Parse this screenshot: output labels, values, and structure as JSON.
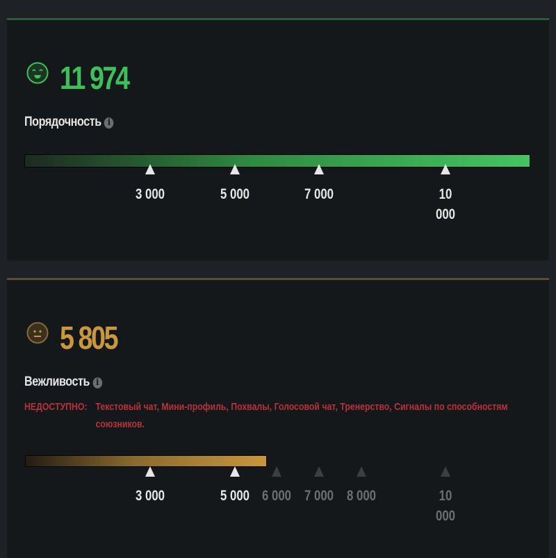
{
  "decency": {
    "score": "11 974",
    "label": "Порядочность",
    "info_icon": "info-icon",
    "face_icon": "smiling-face-icon",
    "color": "#3fbf5a",
    "fill_fraction": 1.0,
    "markers": [
      {
        "label": "3 000",
        "reached": true
      },
      {
        "label": "5 000",
        "reached": true
      },
      {
        "label": "7 000",
        "reached": true
      },
      {
        "label": "10 000",
        "reached": true
      }
    ]
  },
  "politeness": {
    "score": "5 805",
    "label": "Вежливость",
    "info_icon": "info-icon",
    "face_icon": "neutral-face-icon",
    "color": "#c8973e",
    "fill_fraction": 0.48,
    "unavailable_label": "НЕДОСТУПНО:",
    "unavailable_text": "Текстовый чат, Мини-профиль, Похвалы, Голосовой чат, Тренерство, Сигналы по способностям союзников.",
    "markers": [
      {
        "label": "3 000",
        "reached": true
      },
      {
        "label": "5 000",
        "reached": true
      },
      {
        "label": "6 000",
        "reached": false
      },
      {
        "label": "7 000",
        "reached": false
      },
      {
        "label": "8 000",
        "reached": false
      },
      {
        "label": "10 000",
        "reached": false
      }
    ]
  }
}
